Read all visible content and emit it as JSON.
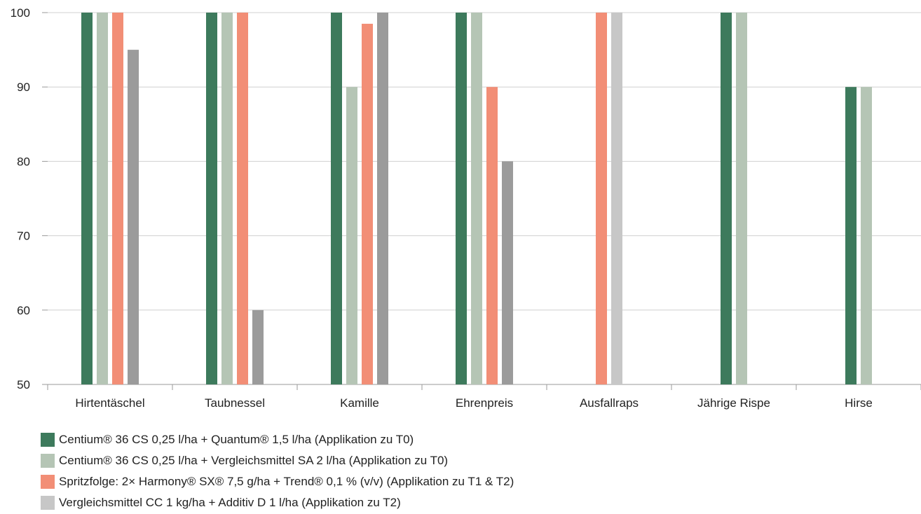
{
  "chart_data": {
    "type": "bar",
    "categories": [
      "Hirtentäschel",
      "Taubnessel",
      "Kamille",
      "Ehrenpreis",
      "Ausfallraps",
      "Jährige Rispe",
      "Hirse"
    ],
    "ylim": [
      50,
      100
    ],
    "yticks": [
      50,
      60,
      70,
      80,
      90,
      100
    ],
    "grid": true,
    "legend_position": "bottom-left",
    "series": [
      {
        "name": "Centium® 36 CS 0,25 l/ha + Quantum® 1,5 l/ha (Applikation zu T0)",
        "color": "#3d7a5c",
        "values": [
          100,
          100,
          100,
          100,
          null,
          100,
          90
        ]
      },
      {
        "name": "Centium® 36 CS 0,25 l/ha + Vergleichsmittel SA 2 l/ha (Applikation zu T0)",
        "color": "#b5c5b5",
        "values": [
          100,
          100,
          90,
          100,
          null,
          100,
          90
        ]
      },
      {
        "name": "Spritzfolge: 2× Harmony® SX® 7,5 g/ha + Trend® 0,1 % (v/v) (Applikation zu T1 & T2)",
        "color": "#f28e76",
        "values": [
          100,
          100,
          98.5,
          90,
          100,
          null,
          null
        ]
      },
      {
        "name": "Vergleichsmittel CC 1 kg/ha + Additiv D 1 l/ha (Applikation zu T2)",
        "color": "#c7c7c7",
        "values": [
          null,
          null,
          null,
          null,
          100,
          null,
          null
        ]
      },
      {
        "name": "",
        "color": "#9b9b9b",
        "values": [
          95,
          60,
          100,
          80,
          null,
          null,
          null
        ]
      }
    ]
  }
}
